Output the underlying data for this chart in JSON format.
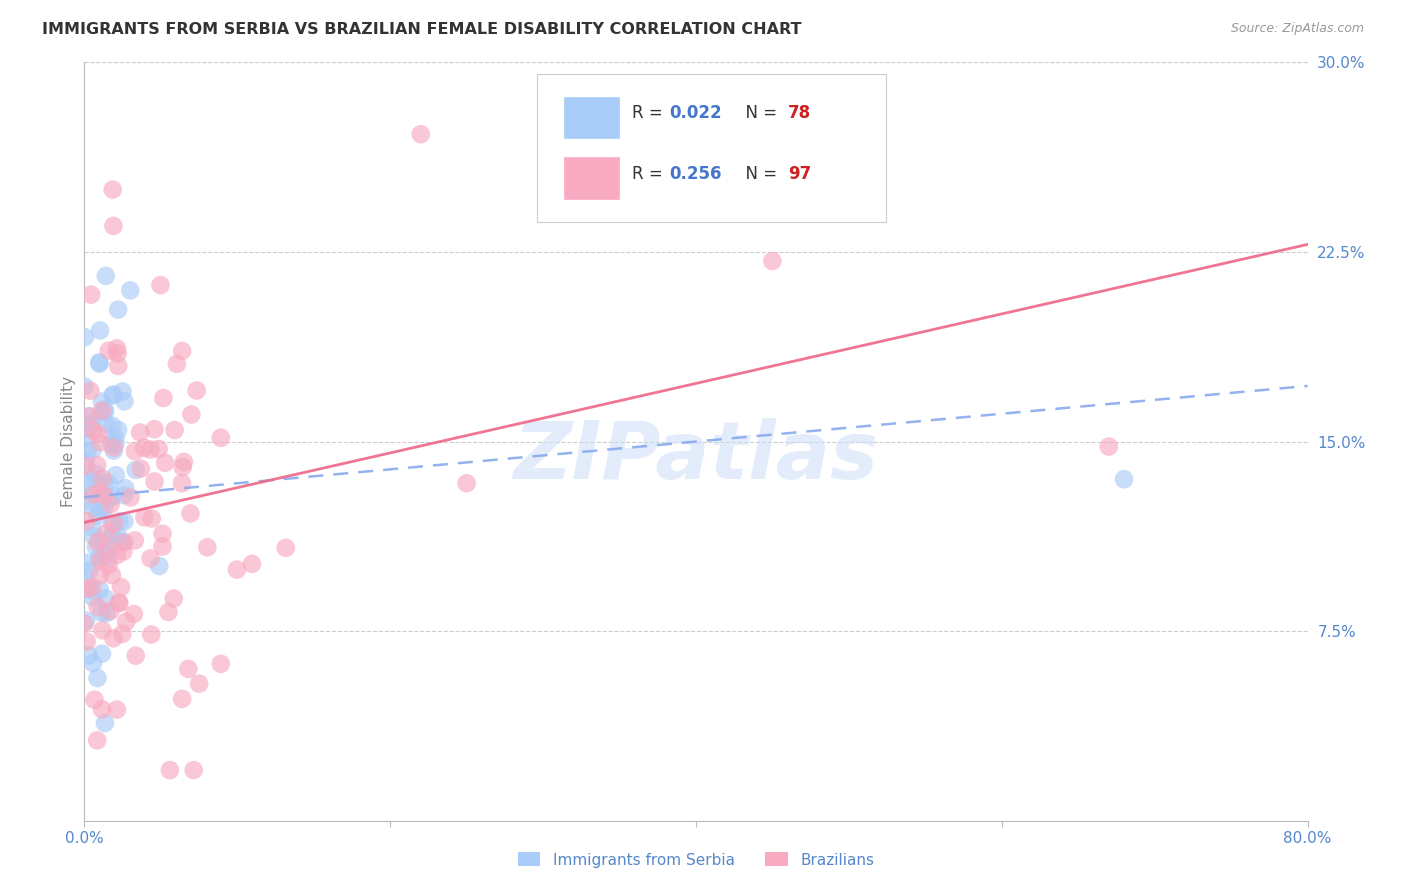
{
  "title": "IMMIGRANTS FROM SERBIA VS BRAZILIAN FEMALE DISABILITY CORRELATION CHART",
  "source": "Source: ZipAtlas.com",
  "ylabel": "Female Disability",
  "watermark": "ZIPatlas",
  "xlim": [
    0.0,
    0.8
  ],
  "ylim": [
    0.0,
    0.3
  ],
  "ytick_vals": [
    0.3,
    0.225,
    0.15,
    0.075
  ],
  "ytick_labels": [
    "30.0%",
    "22.5%",
    "15.0%",
    "7.5%"
  ],
  "series1_color": "#aaccf8",
  "series2_color": "#f8aac0",
  "series1_line_color": "#88aaee",
  "series2_line_color": "#ee6688",
  "background_color": "#ffffff",
  "grid_color": "#cccccc",
  "title_color": "#333333",
  "axis_label_color": "#5588cc",
  "r1": 0.022,
  "n1": 78,
  "r2": 0.256,
  "n2": 97,
  "legend_r_color": "#4477cc",
  "legend_n_color": "#cc2222",
  "legend_text_color": "#333333",
  "line1_start_y": 0.128,
  "line1_end_y": 0.172,
  "line2_start_y": 0.118,
  "line2_end_y": 0.228
}
